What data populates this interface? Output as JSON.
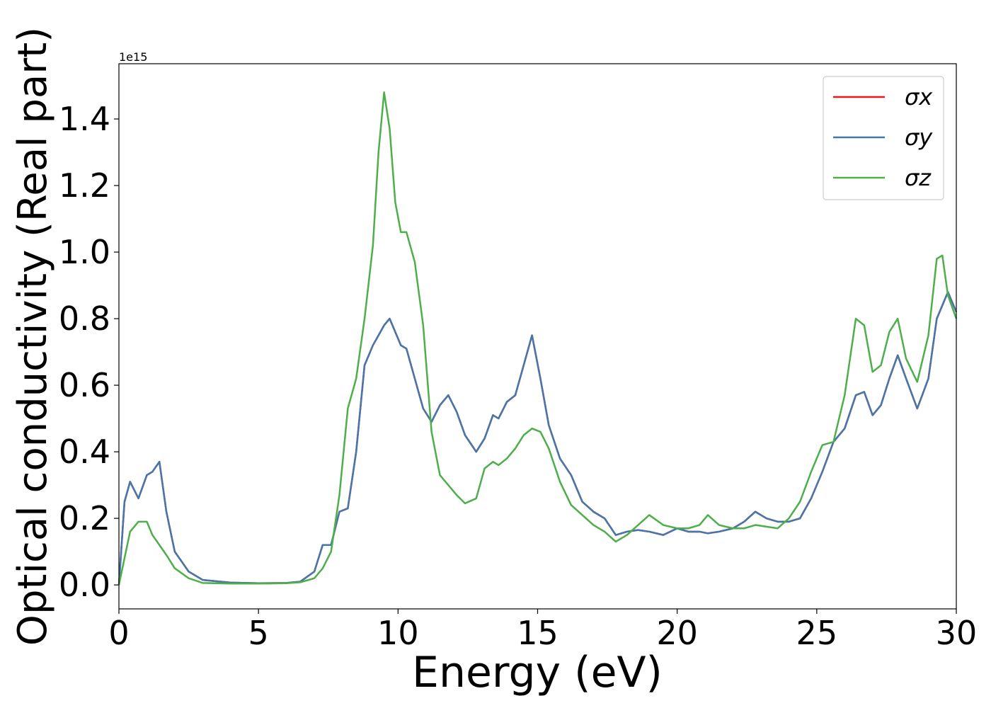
{
  "chart_data": {
    "type": "line",
    "xlabel": "Energy (eV)",
    "ylabel": "Optical conductivity (Real part)",
    "y_offset_label": "1e15",
    "xlim": [
      0,
      30
    ],
    "ylim": [
      -0.072,
      1.566
    ],
    "xticks": [
      0,
      5,
      10,
      15,
      20,
      25,
      30
    ],
    "yticks": [
      {
        "value": 0,
        "label": "0.0"
      },
      0.2,
      0.4,
      0.6,
      0.8,
      {
        "value": 1,
        "label": "1.0"
      },
      1.2,
      1.4
    ],
    "legend": "upper right",
    "grid": false,
    "x": [
      0,
      0.2,
      0.4,
      0.7,
      1.0,
      1.2,
      1.45,
      1.7,
      2.0,
      2.5,
      3,
      4,
      5,
      6,
      6.5,
      7,
      7.3,
      7.6,
      7.9,
      8.2,
      8.5,
      8.8,
      9.1,
      9.3,
      9.5,
      9.7,
      9.9,
      10.1,
      10.3,
      10.6,
      10.9,
      11.2,
      11.5,
      11.8,
      12.1,
      12.4,
      12.8,
      13.1,
      13.4,
      13.6,
      13.9,
      14.2,
      14.5,
      14.8,
      15.1,
      15.4,
      15.8,
      16.2,
      16.6,
      17.0,
      17.4,
      17.8,
      18.2,
      18.6,
      19.0,
      19.5,
      20.0,
      20.4,
      20.8,
      21.1,
      21.5,
      22.0,
      22.4,
      22.8,
      23.2,
      23.6,
      24.0,
      24.4,
      24.8,
      25.2,
      25.6,
      26.0,
      26.4,
      26.7,
      27.0,
      27.3,
      27.6,
      27.9,
      28.2,
      28.6,
      29.0,
      29.3,
      29.5,
      29.7,
      30.0
    ],
    "series": [
      {
        "name": "σx",
        "color": "#e41a1c",
        "values": [
          0.0,
          0.25,
          0.31,
          0.26,
          0.33,
          0.34,
          0.37,
          0.22,
          0.1,
          0.04,
          0.015,
          0.007,
          0.005,
          0.006,
          0.01,
          0.04,
          0.12,
          0.12,
          0.22,
          0.23,
          0.4,
          0.66,
          0.72,
          0.75,
          0.78,
          0.8,
          0.76,
          0.72,
          0.71,
          0.62,
          0.53,
          0.49,
          0.54,
          0.57,
          0.52,
          0.45,
          0.4,
          0.44,
          0.51,
          0.5,
          0.55,
          0.57,
          0.66,
          0.75,
          0.62,
          0.48,
          0.38,
          0.33,
          0.25,
          0.22,
          0.2,
          0.15,
          0.16,
          0.165,
          0.16,
          0.15,
          0.17,
          0.16,
          0.16,
          0.155,
          0.16,
          0.17,
          0.19,
          0.22,
          0.2,
          0.19,
          0.19,
          0.2,
          0.26,
          0.34,
          0.43,
          0.47,
          0.57,
          0.58,
          0.51,
          0.54,
          0.62,
          0.69,
          0.62,
          0.53,
          0.62,
          0.8,
          0.84,
          0.88,
          0.82
        ]
      },
      {
        "name": "σy",
        "color": "#4477aa",
        "values": [
          0.0,
          0.25,
          0.31,
          0.26,
          0.33,
          0.34,
          0.37,
          0.22,
          0.1,
          0.04,
          0.015,
          0.007,
          0.005,
          0.006,
          0.01,
          0.04,
          0.12,
          0.12,
          0.22,
          0.23,
          0.4,
          0.66,
          0.72,
          0.75,
          0.78,
          0.8,
          0.76,
          0.72,
          0.71,
          0.62,
          0.53,
          0.49,
          0.54,
          0.57,
          0.52,
          0.45,
          0.4,
          0.44,
          0.51,
          0.5,
          0.55,
          0.57,
          0.66,
          0.75,
          0.62,
          0.48,
          0.38,
          0.33,
          0.25,
          0.22,
          0.2,
          0.15,
          0.16,
          0.165,
          0.16,
          0.15,
          0.17,
          0.16,
          0.16,
          0.155,
          0.16,
          0.17,
          0.19,
          0.22,
          0.2,
          0.19,
          0.19,
          0.2,
          0.26,
          0.34,
          0.43,
          0.47,
          0.57,
          0.58,
          0.51,
          0.54,
          0.62,
          0.69,
          0.62,
          0.53,
          0.62,
          0.8,
          0.84,
          0.88,
          0.82
        ]
      },
      {
        "name": "σz",
        "color": "#4daf4a",
        "values": [
          0.0,
          0.08,
          0.16,
          0.19,
          0.19,
          0.15,
          0.12,
          0.09,
          0.05,
          0.02,
          0.006,
          0.004,
          0.004,
          0.005,
          0.008,
          0.02,
          0.05,
          0.1,
          0.27,
          0.53,
          0.62,
          0.8,
          1.02,
          1.3,
          1.48,
          1.37,
          1.15,
          1.06,
          1.06,
          0.97,
          0.78,
          0.46,
          0.33,
          0.3,
          0.27,
          0.245,
          0.26,
          0.35,
          0.37,
          0.36,
          0.38,
          0.41,
          0.45,
          0.47,
          0.46,
          0.41,
          0.31,
          0.24,
          0.21,
          0.18,
          0.16,
          0.13,
          0.15,
          0.18,
          0.21,
          0.18,
          0.17,
          0.17,
          0.18,
          0.21,
          0.18,
          0.17,
          0.17,
          0.18,
          0.175,
          0.17,
          0.2,
          0.25,
          0.34,
          0.42,
          0.43,
          0.57,
          0.8,
          0.78,
          0.64,
          0.66,
          0.76,
          0.8,
          0.68,
          0.61,
          0.75,
          0.98,
          0.99,
          0.87,
          0.8
        ]
      }
    ]
  }
}
